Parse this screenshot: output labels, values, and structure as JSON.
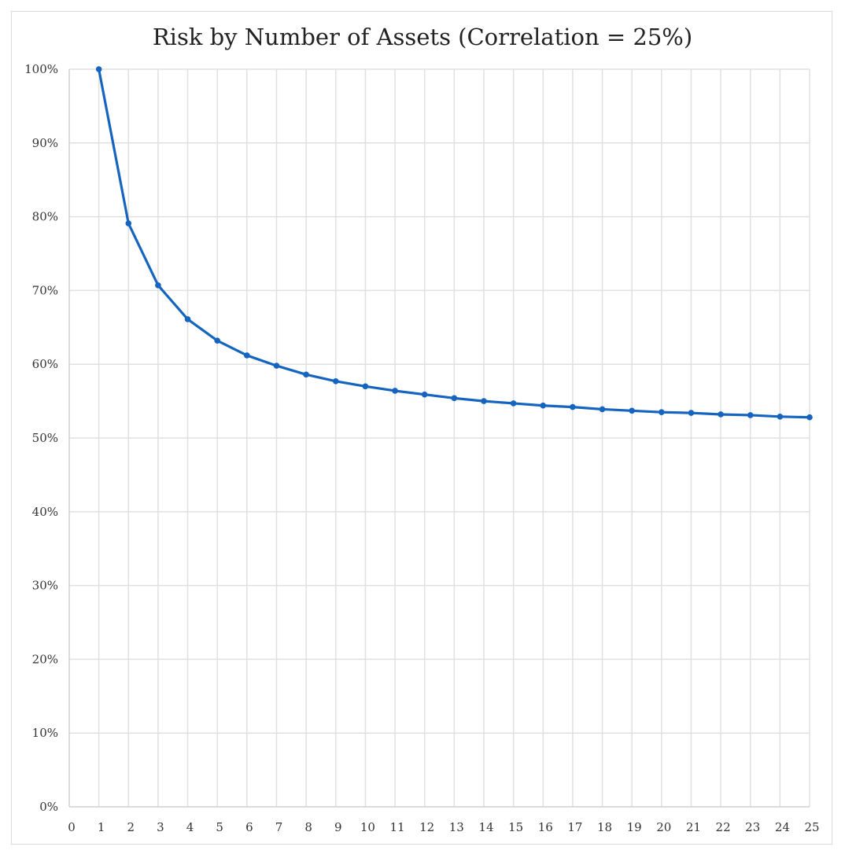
{
  "chart_data": {
    "type": "line",
    "title": "Risk by Number of Assets (Correlation = 25%)",
    "xlabel": "",
    "ylabel": "",
    "x": [
      1,
      2,
      3,
      4,
      5,
      6,
      7,
      8,
      9,
      10,
      11,
      12,
      13,
      14,
      15,
      16,
      17,
      18,
      19,
      20,
      21,
      22,
      23,
      24,
      25
    ],
    "series": [
      {
        "values": [
          100,
          79.1,
          70.7,
          66.1,
          63.2,
          61.2,
          59.8,
          58.6,
          57.7,
          57.0,
          56.4,
          55.9,
          55.4,
          55.0,
          54.7,
          54.4,
          54.2,
          53.9,
          53.7,
          53.5,
          53.4,
          53.2,
          53.1,
          52.9,
          52.8
        ],
        "color": "#1565c0"
      }
    ],
    "xlim": [
      0,
      25
    ],
    "ylim": [
      0,
      100
    ],
    "x_ticks": [
      "0",
      "1",
      "2",
      "3",
      "4",
      "5",
      "6",
      "7",
      "8",
      "9",
      "10",
      "11",
      "12",
      "13",
      "14",
      "15",
      "16",
      "17",
      "18",
      "19",
      "20",
      "21",
      "22",
      "23",
      "24",
      "25"
    ],
    "y_ticks": [
      "0%",
      "10%",
      "20%",
      "30%",
      "40%",
      "50%",
      "60%",
      "70%",
      "80%",
      "90%",
      "100%"
    ],
    "grid": true,
    "legend": "none",
    "colors": {
      "line": "#1565c0",
      "grid": "#e0e0e0",
      "axis": "#d0d0d0"
    }
  }
}
